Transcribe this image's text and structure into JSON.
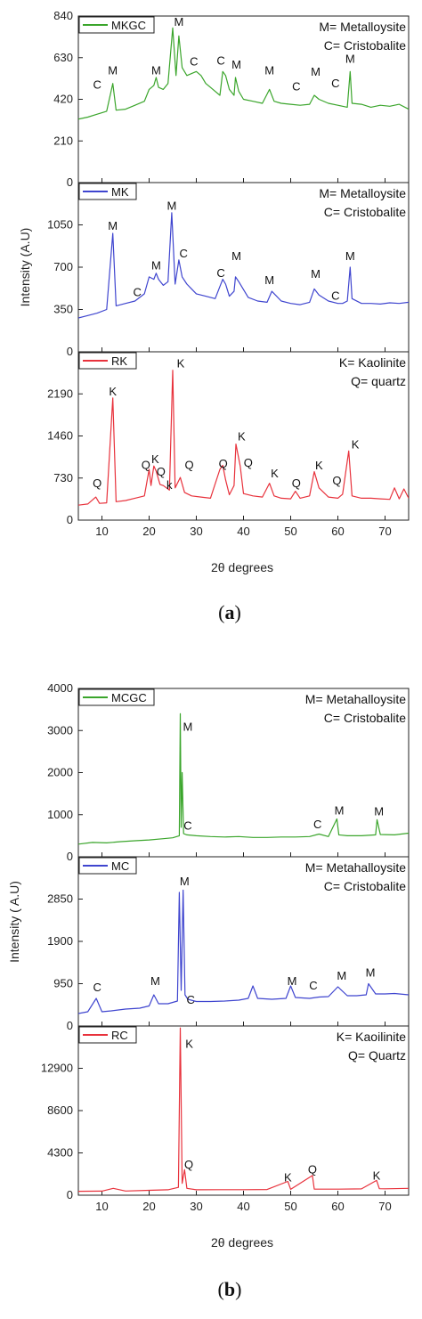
{
  "figure": {
    "a": {
      "caption_open": "(",
      "caption_letter": "a",
      "caption_close": ")",
      "xlabel": "2θ degrees",
      "ylabel": "Intensity (A.U)"
    },
    "b": {
      "caption_open": "(",
      "caption_letter": "b",
      "caption_close": ")",
      "xlabel": "2θ degrees",
      "ylabel": "Intensity ( A.U)"
    }
  },
  "chart_data": [
    {
      "type": "line",
      "group": "a",
      "series_name": "MKGC",
      "color": "#3aa52b",
      "notes": [
        "M= Metalloysite",
        "C= Cristobalite"
      ],
      "xlim": [
        5,
        75
      ],
      "ylim": [
        0,
        840
      ],
      "yticks": [
        0,
        210,
        420,
        630,
        840
      ],
      "xticks": [
        10,
        20,
        30,
        40,
        50,
        60,
        70
      ],
      "show_xticklabels": false,
      "x": [
        5,
        7,
        9,
        11,
        12.3,
        13,
        15,
        17,
        19,
        20,
        21,
        21.5,
        22,
        23,
        24,
        25,
        25.7,
        26.3,
        27,
        28,
        29,
        30,
        31,
        32,
        33,
        34,
        35,
        35.6,
        36.2,
        37,
        38,
        38.3,
        39,
        40,
        42,
        44,
        45.5,
        46.5,
        48,
        50,
        52,
        54,
        55,
        56,
        58,
        60,
        61,
        62,
        62.6,
        63,
        65,
        67,
        69,
        71,
        73,
        75
      ],
      "y": [
        320,
        330,
        345,
        360,
        500,
        365,
        370,
        390,
        410,
        470,
        490,
        530,
        480,
        470,
        500,
        780,
        540,
        740,
        580,
        540,
        550,
        560,
        540,
        500,
        480,
        460,
        440,
        560,
        540,
        470,
        440,
        530,
        460,
        420,
        410,
        400,
        470,
        410,
        400,
        395,
        390,
        395,
        440,
        420,
        400,
        390,
        385,
        380,
        560,
        400,
        395,
        380,
        390,
        385,
        395,
        370
      ],
      "peaks": [
        {
          "label": "C",
          "x": 9,
          "y": 475
        },
        {
          "label": "M",
          "x": 12.3,
          "y": 545
        },
        {
          "label": "M",
          "x": 21.5,
          "y": 545
        },
        {
          "label": "M",
          "x": 26.3,
          "y": 790
        },
        {
          "label": "C",
          "x": 29.5,
          "y": 590
        },
        {
          "label": "C",
          "x": 35.2,
          "y": 595
        },
        {
          "label": "M",
          "x": 38.5,
          "y": 575
        },
        {
          "label": "M",
          "x": 45.5,
          "y": 545
        },
        {
          "label": "C",
          "x": 51.2,
          "y": 465
        },
        {
          "label": "M",
          "x": 55.3,
          "y": 540
        },
        {
          "label": "C",
          "x": 59.5,
          "y": 480
        },
        {
          "label": "M",
          "x": 62.6,
          "y": 605
        }
      ]
    },
    {
      "type": "line",
      "group": "a",
      "series_name": "MK",
      "color": "#3f45cf",
      "notes": [
        "M= Metalloysite",
        "C= Cristobalite"
      ],
      "xlim": [
        5,
        75
      ],
      "ylim": [
        0,
        1400
      ],
      "yticks": [
        0,
        350,
        700,
        1050
      ],
      "xticks": [
        10,
        20,
        30,
        40,
        50,
        60,
        70
      ],
      "show_xticklabels": false,
      "x": [
        5,
        7,
        9,
        11,
        12.3,
        13,
        15,
        17,
        19,
        20,
        21,
        21.5,
        22,
        23,
        24,
        24.8,
        25.5,
        26.3,
        27,
        28,
        29,
        30,
        32,
        34,
        35,
        35.6,
        36.2,
        37,
        38,
        38.3,
        39,
        41,
        43,
        45,
        46,
        48,
        50,
        52,
        54,
        55,
        56,
        58,
        60,
        61,
        62,
        62.6,
        63,
        65,
        67,
        69,
        71,
        73,
        75
      ],
      "y": [
        280,
        300,
        320,
        350,
        980,
        380,
        400,
        420,
        480,
        620,
        600,
        650,
        600,
        550,
        580,
        1150,
        560,
        760,
        620,
        560,
        520,
        480,
        460,
        440,
        540,
        600,
        560,
        460,
        500,
        620,
        580,
        450,
        420,
        410,
        500,
        420,
        400,
        390,
        410,
        520,
        470,
        420,
        400,
        400,
        420,
        700,
        440,
        400,
        400,
        395,
        405,
        400,
        410
      ],
      "peaks": [
        {
          "label": "M",
          "x": 12.3,
          "y": 1010
        },
        {
          "label": "C",
          "x": 17.5,
          "y": 460
        },
        {
          "label": "M",
          "x": 21.5,
          "y": 680
        },
        {
          "label": "M",
          "x": 24.8,
          "y": 1175
        },
        {
          "label": "C",
          "x": 27.3,
          "y": 780
        },
        {
          "label": "C",
          "x": 35.2,
          "y": 620
        },
        {
          "label": "M",
          "x": 38.5,
          "y": 760
        },
        {
          "label": "M",
          "x": 45.5,
          "y": 560
        },
        {
          "label": "M",
          "x": 55.3,
          "y": 610
        },
        {
          "label": "C",
          "x": 59.5,
          "y": 430
        },
        {
          "label": "M",
          "x": 62.6,
          "y": 760
        }
      ]
    },
    {
      "type": "line",
      "group": "a",
      "series_name": "RK",
      "color": "#e8323c",
      "notes": [
        "K= Kaolinite",
        "Q= quartz"
      ],
      "xlim": [
        5,
        75
      ],
      "ylim": [
        0,
        2920
      ],
      "yticks": [
        0,
        730,
        1460,
        2190
      ],
      "xticks": [
        10,
        20,
        30,
        40,
        50,
        60,
        70
      ],
      "show_xticklabels": true,
      "x": [
        5,
        7,
        8.7,
        9.5,
        11,
        12.3,
        13,
        15,
        17,
        19,
        20,
        20.4,
        21,
        21.5,
        22.3,
        23,
        24.3,
        25,
        25.5,
        26.6,
        27.5,
        29,
        31,
        33,
        35,
        35.6,
        36.2,
        37,
        38,
        38.4,
        39.3,
        40,
        42,
        44,
        45.5,
        46.5,
        48,
        50,
        51,
        52,
        54,
        55,
        56,
        58,
        60,
        61,
        62.3,
        63,
        65,
        67,
        69,
        71,
        72,
        73,
        74,
        75
      ],
      "y": [
        260,
        280,
        400,
        290,
        300,
        2120,
        320,
        340,
        380,
        420,
        880,
        600,
        940,
        850,
        620,
        600,
        520,
        2600,
        560,
        740,
        480,
        420,
        400,
        380,
        880,
        950,
        700,
        440,
        600,
        1320,
        940,
        460,
        420,
        400,
        640,
        420,
        380,
        370,
        500,
        380,
        420,
        840,
        560,
        400,
        380,
        450,
        1200,
        420,
        380,
        380,
        370,
        360,
        560,
        370,
        540,
        380
      ],
      "peaks": [
        {
          "label": "Q",
          "x": 9,
          "y": 570
        },
        {
          "label": "K",
          "x": 12.3,
          "y": 2160
        },
        {
          "label": "Q",
          "x": 19.3,
          "y": 890
        },
        {
          "label": "K",
          "x": 21.3,
          "y": 990
        },
        {
          "label": "Q",
          "x": 22.5,
          "y": 770
        },
        {
          "label": "k",
          "x": 24.3,
          "y": 540
        },
        {
          "label": "K",
          "x": 26.7,
          "y": 2650
        },
        {
          "label": "Q",
          "x": 28.5,
          "y": 890
        },
        {
          "label": "Q",
          "x": 35.7,
          "y": 910
        },
        {
          "label": "K",
          "x": 39.6,
          "y": 1380
        },
        {
          "label": "Q",
          "x": 41,
          "y": 930
        },
        {
          "label": "K",
          "x": 46.6,
          "y": 740
        },
        {
          "label": "Q",
          "x": 51.2,
          "y": 570
        },
        {
          "label": "K",
          "x": 56,
          "y": 880
        },
        {
          "label": "Q",
          "x": 59.8,
          "y": 620
        },
        {
          "label": "K",
          "x": 63.7,
          "y": 1240
        }
      ]
    },
    {
      "type": "line",
      "group": "b",
      "series_name": "MCGC",
      "color": "#3aa52b",
      "notes": [
        "M= Metahalloysite",
        "C= Cristobalite"
      ],
      "xlim": [
        5,
        75
      ],
      "ylim": [
        0,
        4000
      ],
      "yticks": [
        0,
        1000,
        2000,
        3000,
        4000
      ],
      "xticks": [
        10,
        20,
        30,
        40,
        50,
        60,
        70
      ],
      "show_xticklabels": false,
      "x": [
        5,
        8,
        11,
        14,
        17,
        20,
        23,
        25,
        26.4,
        26.6,
        26.8,
        27,
        27.3,
        28,
        30,
        33,
        36,
        39,
        42,
        45,
        48,
        51,
        54,
        56,
        58,
        59.8,
        60.2,
        62,
        65,
        68,
        68.3,
        69,
        72,
        75
      ],
      "y": [
        300,
        340,
        330,
        360,
        380,
        400,
        430,
        450,
        500,
        3400,
        700,
        2000,
        550,
        520,
        500,
        480,
        470,
        480,
        460,
        460,
        470,
        470,
        480,
        540,
        480,
        900,
        520,
        500,
        500,
        520,
        880,
        530,
        520,
        560
      ],
      "peaks": [
        {
          "label": "M",
          "x": 28.2,
          "y": 3000
        },
        {
          "label": "C",
          "x": 28.2,
          "y": 650
        },
        {
          "label": "C",
          "x": 55.7,
          "y": 680
        },
        {
          "label": "M",
          "x": 60.3,
          "y": 1010
        },
        {
          "label": "M",
          "x": 68.7,
          "y": 980
        }
      ]
    },
    {
      "type": "line",
      "group": "b",
      "series_name": "MC",
      "color": "#3f45cf",
      "notes": [
        "M= Metahalloysite",
        "C= Cristobalite"
      ],
      "xlim": [
        5,
        75
      ],
      "ylim": [
        0,
        3800
      ],
      "yticks": [
        0,
        950,
        1900,
        2850
      ],
      "xticks": [
        10,
        20,
        30,
        40,
        50,
        60,
        70
      ],
      "show_xticklabels": false,
      "x": [
        5,
        7,
        8.8,
        10,
        12,
        15,
        18,
        20,
        21,
        22,
        24,
        26,
        26.4,
        26.8,
        27.2,
        27.6,
        28.2,
        30,
        33,
        36,
        39,
        41,
        42,
        43,
        46,
        49,
        50,
        51,
        54,
        56,
        58,
        60,
        62,
        64,
        66,
        66.5,
        68,
        70,
        72,
        75
      ],
      "y": [
        280,
        320,
        620,
        320,
        340,
        380,
        400,
        450,
        700,
        500,
        500,
        560,
        3000,
        800,
        3050,
        700,
        600,
        550,
        550,
        560,
        580,
        620,
        900,
        620,
        600,
        620,
        900,
        640,
        620,
        650,
        660,
        880,
        680,
        680,
        700,
        950,
        720,
        720,
        730,
        700
      ],
      "peaks": [
        {
          "label": "C",
          "x": 9,
          "y": 780
        },
        {
          "label": "M",
          "x": 21.3,
          "y": 920
        },
        {
          "label": "M",
          "x": 27.5,
          "y": 3160
        },
        {
          "label": "C",
          "x": 28.8,
          "y": 500
        },
        {
          "label": "M",
          "x": 50.3,
          "y": 920
        },
        {
          "label": "C",
          "x": 54.8,
          "y": 820
        },
        {
          "label": "M",
          "x": 60.8,
          "y": 1040
        },
        {
          "label": "M",
          "x": 66.9,
          "y": 1110
        }
      ]
    },
    {
      "type": "line",
      "group": "b",
      "series_name": "RC",
      "color": "#e8323c",
      "notes": [
        "K= Kaoilinite",
        "Q= Quartz"
      ],
      "xlim": [
        5,
        75
      ],
      "ylim": [
        0,
        17200
      ],
      "yticks": [
        0,
        4300,
        8600,
        12900
      ],
      "xticks": [
        10,
        20,
        30,
        40,
        50,
        60,
        70
      ],
      "show_xticklabels": true,
      "x": [
        5,
        10,
        12.4,
        15,
        20,
        24,
        26.2,
        26.6,
        27,
        27.5,
        28,
        30,
        35,
        40,
        45,
        49.4,
        50,
        54.6,
        55,
        60,
        65,
        68.2,
        68.8,
        70,
        75
      ],
      "y": [
        400,
        420,
        700,
        430,
        500,
        550,
        800,
        17000,
        1200,
        2600,
        700,
        550,
        560,
        560,
        580,
        1400,
        600,
        2000,
        620,
        620,
        640,
        1500,
        660,
        650,
        700
      ],
      "peaks": [
        {
          "label": "K",
          "x": 28.5,
          "y": 15000
        },
        {
          "label": "Q",
          "x": 28.4,
          "y": 2700
        },
        {
          "label": "K",
          "x": 49.4,
          "y": 1400
        },
        {
          "label": "Q",
          "x": 54.6,
          "y": 2200
        },
        {
          "label": "K",
          "x": 68.2,
          "y": 1600
        }
      ]
    }
  ]
}
